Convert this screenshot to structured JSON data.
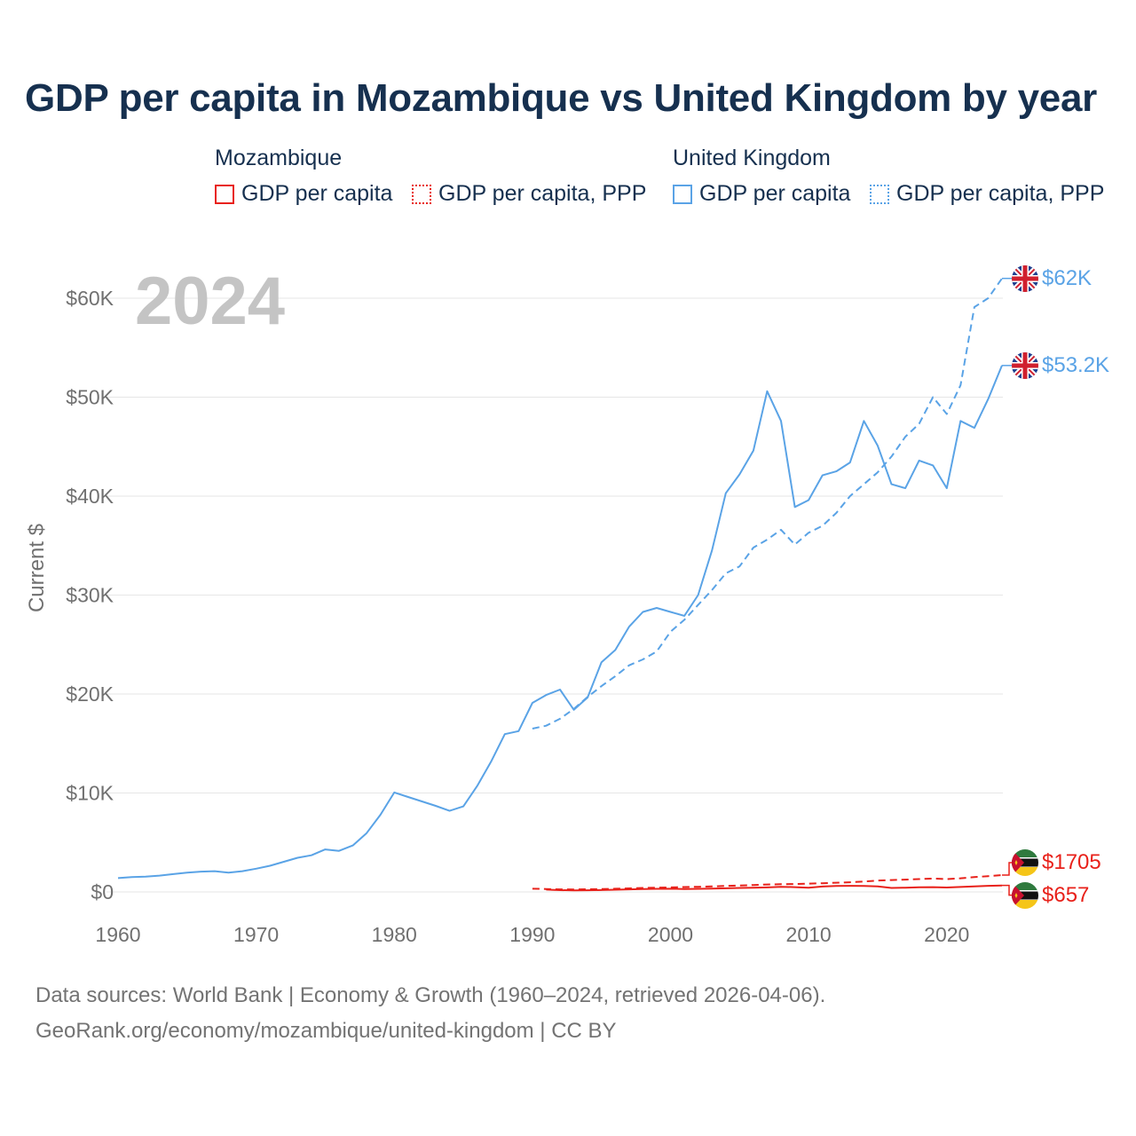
{
  "title": "GDP per capita in Mozambique vs United Kingdom by year",
  "year_watermark": "2024",
  "legend": {
    "groups": [
      {
        "country": "Mozambique",
        "color": "#e8211a",
        "items": [
          {
            "label": "GDP per capita",
            "style": "solid"
          },
          {
            "label": "GDP per capita, PPP",
            "style": "dotted"
          }
        ]
      },
      {
        "country": "United Kingdom",
        "color": "#5aa3e6",
        "items": [
          {
            "label": "GDP per capita",
            "style": "solid"
          },
          {
            "label": "GDP per capita, PPP",
            "style": "dotted"
          }
        ]
      }
    ]
  },
  "end_labels": {
    "uk_ppp": "$62K",
    "uk_gdp": "$53.2K",
    "moz_ppp": "$1705",
    "moz_gdp": "$657"
  },
  "flags": {
    "uk": "united-kingdom-flag",
    "moz": "mozambique-flag"
  },
  "source": {
    "line1": "Data sources: World Bank | Economy & Growth (1960–2024, retrieved 2026-04-06).",
    "line2": "GeoRank.org/economy/mozambique/united-kingdom | CC BY"
  },
  "chart_data": {
    "type": "line",
    "title": "GDP per capita in Mozambique vs United Kingdom by year",
    "xlabel": "",
    "ylabel": "Current $",
    "xlim": [
      1960,
      2024
    ],
    "ylim": [
      0,
      65000
    ],
    "x_ticks": [
      1960,
      1970,
      1980,
      1990,
      2000,
      2010,
      2020
    ],
    "x_tick_labels": [
      "1960",
      "1970",
      "1980",
      "1990",
      "2000",
      "2010",
      "2020"
    ],
    "y_ticks": [
      0,
      10000,
      20000,
      30000,
      40000,
      50000,
      60000
    ],
    "y_tick_labels": [
      "$0",
      "$10K",
      "$20K",
      "$30K",
      "$40K",
      "$50K",
      "$60K"
    ],
    "grid": true,
    "series": [
      {
        "name": "United Kingdom GDP per capita",
        "color": "#5aa3e6",
        "dash": "solid",
        "x": [
          1960,
          1961,
          1962,
          1963,
          1964,
          1965,
          1966,
          1967,
          1968,
          1969,
          1970,
          1971,
          1972,
          1973,
          1974,
          1975,
          1976,
          1977,
          1978,
          1979,
          1980,
          1981,
          1982,
          1983,
          1984,
          1985,
          1986,
          1987,
          1988,
          1989,
          1990,
          1991,
          1992,
          1993,
          1994,
          1995,
          1996,
          1997,
          1998,
          1999,
          2000,
          2001,
          2002,
          2003,
          2004,
          2005,
          2006,
          2007,
          2008,
          2009,
          2010,
          2011,
          2012,
          2013,
          2014,
          2015,
          2016,
          2017,
          2018,
          2019,
          2020,
          2021,
          2022,
          2023,
          2024
        ],
        "values": [
          1400,
          1500,
          1550,
          1650,
          1800,
          1950,
          2050,
          2100,
          1950,
          2100,
          2350,
          2650,
          3050,
          3450,
          3700,
          4300,
          4150,
          4700,
          5950,
          7800,
          10050,
          9600,
          9150,
          8700,
          8200,
          8650,
          10700,
          13150,
          15950,
          16250,
          19100,
          19900,
          20450,
          18400,
          19650,
          23200,
          24450,
          26800,
          28300,
          28700,
          28300,
          27900,
          30000,
          34500,
          40300,
          42200,
          44600,
          50600,
          47600,
          38900,
          39600,
          42100,
          42500,
          43400,
          47600,
          45100,
          41200,
          40800,
          43600,
          43100,
          40800,
          47600,
          46900,
          49800,
          53200
        ]
      },
      {
        "name": "United Kingdom GDP per capita, PPP",
        "color": "#5aa3e6",
        "dash": "dashed",
        "x": [
          1990,
          1991,
          1992,
          1993,
          1994,
          1995,
          1996,
          1997,
          1998,
          1999,
          2000,
          2001,
          2002,
          2003,
          2004,
          2005,
          2006,
          2007,
          2008,
          2009,
          2010,
          2011,
          2012,
          2013,
          2014,
          2015,
          2016,
          2017,
          2018,
          2019,
          2020,
          2021,
          2022,
          2023,
          2024
        ],
        "values": [
          16500,
          16800,
          17500,
          18500,
          19700,
          20800,
          21800,
          22900,
          23500,
          24300,
          26300,
          27500,
          29000,
          30500,
          32200,
          32900,
          34800,
          35600,
          36600,
          35100,
          36300,
          37000,
          38300,
          40000,
          41200,
          42400,
          44000,
          46000,
          47300,
          50000,
          48300,
          51200,
          59100,
          60000,
          62000
        ]
      },
      {
        "name": "Mozambique GDP per capita",
        "color": "#e8211a",
        "dash": "solid",
        "x": [
          1991,
          1992,
          1993,
          1994,
          1995,
          1996,
          1997,
          1998,
          1999,
          2000,
          2001,
          2002,
          2003,
          2004,
          2005,
          2006,
          2007,
          2008,
          2009,
          2010,
          2011,
          2012,
          2013,
          2014,
          2015,
          2016,
          2017,
          2018,
          2019,
          2020,
          2021,
          2022,
          2023,
          2024
        ],
        "values": [
          230,
          180,
          160,
          170,
          190,
          220,
          260,
          290,
          310,
          320,
          300,
          310,
          330,
          370,
          400,
          420,
          460,
          520,
          480,
          430,
          550,
          600,
          620,
          610,
          560,
          400,
          430,
          470,
          480,
          450,
          500,
          560,
          620,
          657
        ]
      },
      {
        "name": "Mozambique GDP per capita, PPP",
        "color": "#e8211a",
        "dash": "dashed",
        "x": [
          1990,
          1991,
          1992,
          1993,
          1994,
          1995,
          1996,
          1997,
          1998,
          1999,
          2000,
          2001,
          2002,
          2003,
          2004,
          2005,
          2006,
          2007,
          2008,
          2009,
          2010,
          2011,
          2012,
          2013,
          2014,
          2015,
          2016,
          2017,
          2018,
          2019,
          2020,
          2021,
          2022,
          2023,
          2024
        ],
        "values": [
          320,
          300,
          260,
          250,
          270,
          290,
          320,
          360,
          400,
          430,
          460,
          490,
          520,
          560,
          610,
          650,
          700,
          750,
          780,
          800,
          840,
          880,
          930,
          980,
          1050,
          1150,
          1200,
          1250,
          1300,
          1350,
          1300,
          1380,
          1500,
          1600,
          1705
        ]
      }
    ]
  }
}
